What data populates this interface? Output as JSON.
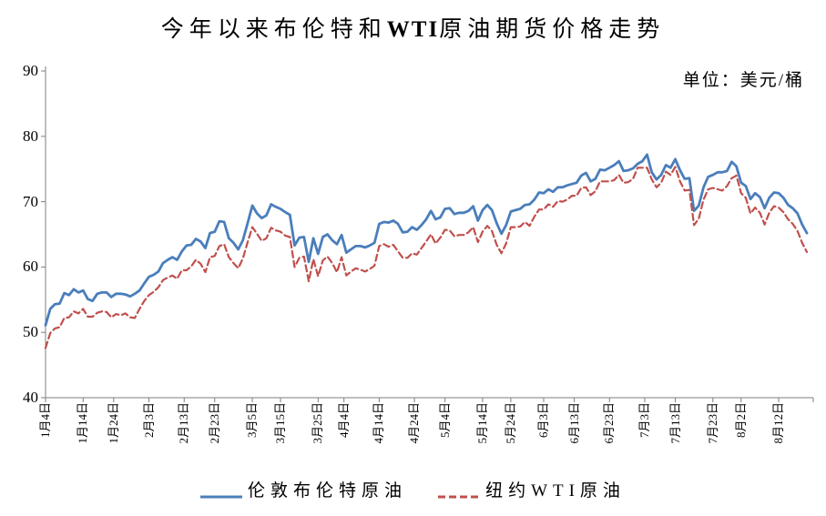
{
  "title": {
    "prefix": "今年以来布伦特和",
    "wti": "WTI",
    "suffix": "原油期货价格走势",
    "full": "今年以来布伦特和WTI原油期货价格走势"
  },
  "chart_data": {
    "type": "line",
    "title": "今年以来布伦特和WTI原油期货价格走势",
    "unit_label": "单位：美元/桶",
    "xlabel": "",
    "ylabel": "",
    "ylim": [
      40,
      90
    ],
    "yticks": [
      40,
      50,
      60,
      70,
      80,
      90
    ],
    "grid": false,
    "legend_position": "bottom",
    "n_points": 163,
    "x_tick_labels": [
      "1月4日",
      "1月14日",
      "1月24日",
      "2月3日",
      "2月13日",
      "2月23日",
      "3月5日",
      "3月15日",
      "3月25日",
      "4月4日",
      "4月14日",
      "4月24日",
      "5月4日",
      "5月14日",
      "5月24日",
      "6月3日",
      "6月13日",
      "6月23日",
      "7月3日",
      "7月13日",
      "7月23日",
      "8月2日",
      "8月12日"
    ],
    "x_tick_data_index": [
      0,
      8,
      14.5,
      22,
      29.5,
      36,
      44,
      50,
      58,
      63.5,
      71,
      78.5,
      85,
      93,
      99,
      106,
      112.5,
      120,
      127.5,
      134,
      142,
      148,
      156
    ],
    "series": [
      {
        "name": "伦敦布伦特原油",
        "color": "#4A7EBB",
        "line_style": "solid",
        "values": [
          51.1,
          53.6,
          54.3,
          54.4,
          56.0,
          55.7,
          56.6,
          56.1,
          56.4,
          55.1,
          54.8,
          55.9,
          56.1,
          56.1,
          55.4,
          55.9,
          55.9,
          55.8,
          55.5,
          55.9,
          56.4,
          57.5,
          58.5,
          58.8,
          59.3,
          60.6,
          61.1,
          61.5,
          61.1,
          62.4,
          63.3,
          63.4,
          64.3,
          63.9,
          62.9,
          65.2,
          65.4,
          67.0,
          66.9,
          64.4,
          63.7,
          62.7,
          64.1,
          66.7,
          69.4,
          68.2,
          67.5,
          67.9,
          69.6,
          69.2,
          68.9,
          68.4,
          68.0,
          63.3,
          64.5,
          64.6,
          60.8,
          64.4,
          62.0,
          64.6,
          65.0,
          64.1,
          63.5,
          64.9,
          62.2,
          62.7,
          63.2,
          63.2,
          63.0,
          63.3,
          63.7,
          66.6,
          66.9,
          66.8,
          67.1,
          66.6,
          65.3,
          65.4,
          66.1,
          65.7,
          66.4,
          67.3,
          68.6,
          67.3,
          67.6,
          68.9,
          69.0,
          68.1,
          68.3,
          68.3,
          68.6,
          69.3,
          67.1,
          68.7,
          69.5,
          68.7,
          66.7,
          65.1,
          66.4,
          68.5,
          68.7,
          68.9,
          69.5,
          69.6,
          70.3,
          71.4,
          71.3,
          71.9,
          71.5,
          72.2,
          72.2,
          72.5,
          72.7,
          72.9,
          74.0,
          74.4,
          73.1,
          73.5,
          74.9,
          74.8,
          75.2,
          75.6,
          76.2,
          74.7,
          74.8,
          75.1,
          75.8,
          76.2,
          77.2,
          74.5,
          73.4,
          74.1,
          75.6,
          75.2,
          76.5,
          74.8,
          73.5,
          73.6,
          68.6,
          69.4,
          72.2,
          73.8,
          74.1,
          74.5,
          74.5,
          74.7,
          76.1,
          75.4,
          72.9,
          72.4,
          70.4,
          71.3,
          70.7,
          69.0,
          70.6,
          71.4,
          71.3,
          70.6,
          69.5,
          69.0,
          68.2,
          66.5,
          65.2
        ]
      },
      {
        "name": "纽约WTI原油",
        "color": "#C0504D",
        "line_style": "dashed",
        "values": [
          47.6,
          49.9,
          50.6,
          50.8,
          52.2,
          52.3,
          53.2,
          52.9,
          53.6,
          52.4,
          52.4,
          53.0,
          53.2,
          53.1,
          52.3,
          52.8,
          52.6,
          52.9,
          52.3,
          52.2,
          53.6,
          54.8,
          55.7,
          56.2,
          56.9,
          58.0,
          58.4,
          58.7,
          58.2,
          59.5,
          59.5,
          60.1,
          61.1,
          60.5,
          59.2,
          61.5,
          61.7,
          63.2,
          63.5,
          61.5,
          60.6,
          59.8,
          61.3,
          63.8,
          66.1,
          65.1,
          64.0,
          64.4,
          66.0,
          65.6,
          65.4,
          64.8,
          64.6,
          60.0,
          61.4,
          61.6,
          57.8,
          61.2,
          58.6,
          61.0,
          61.6,
          60.6,
          59.2,
          61.5,
          58.7,
          59.3,
          59.8,
          59.6,
          59.3,
          59.7,
          60.2,
          63.2,
          63.5,
          63.1,
          63.4,
          62.4,
          61.4,
          61.4,
          62.1,
          61.9,
          62.9,
          63.9,
          65.0,
          63.6,
          64.5,
          65.7,
          65.6,
          64.7,
          64.9,
          64.9,
          65.3,
          66.1,
          63.8,
          65.4,
          66.3,
          65.5,
          63.4,
          62.1,
          63.6,
          66.1,
          66.1,
          66.2,
          66.9,
          66.3,
          67.7,
          68.8,
          68.8,
          69.6,
          69.2,
          70.1,
          70.0,
          70.3,
          70.9,
          70.9,
          72.1,
          72.2,
          71.0,
          71.6,
          73.1,
          73.1,
          73.1,
          73.3,
          74.1,
          72.9,
          73.0,
          73.5,
          75.2,
          75.2,
          75.2,
          73.4,
          72.2,
          72.9,
          74.6,
          74.1,
          75.3,
          73.1,
          71.7,
          71.8,
          66.4,
          67.4,
          70.3,
          71.9,
          72.1,
          71.9,
          71.7,
          72.4,
          73.6,
          74.0,
          71.3,
          70.6,
          68.2,
          69.1,
          68.3,
          66.5,
          68.3,
          69.3,
          69.1,
          68.4,
          67.3,
          66.6,
          65.5,
          63.7,
          62.3
        ]
      }
    ],
    "axis_color": "#7f7f7f",
    "text_color": "#000000"
  }
}
